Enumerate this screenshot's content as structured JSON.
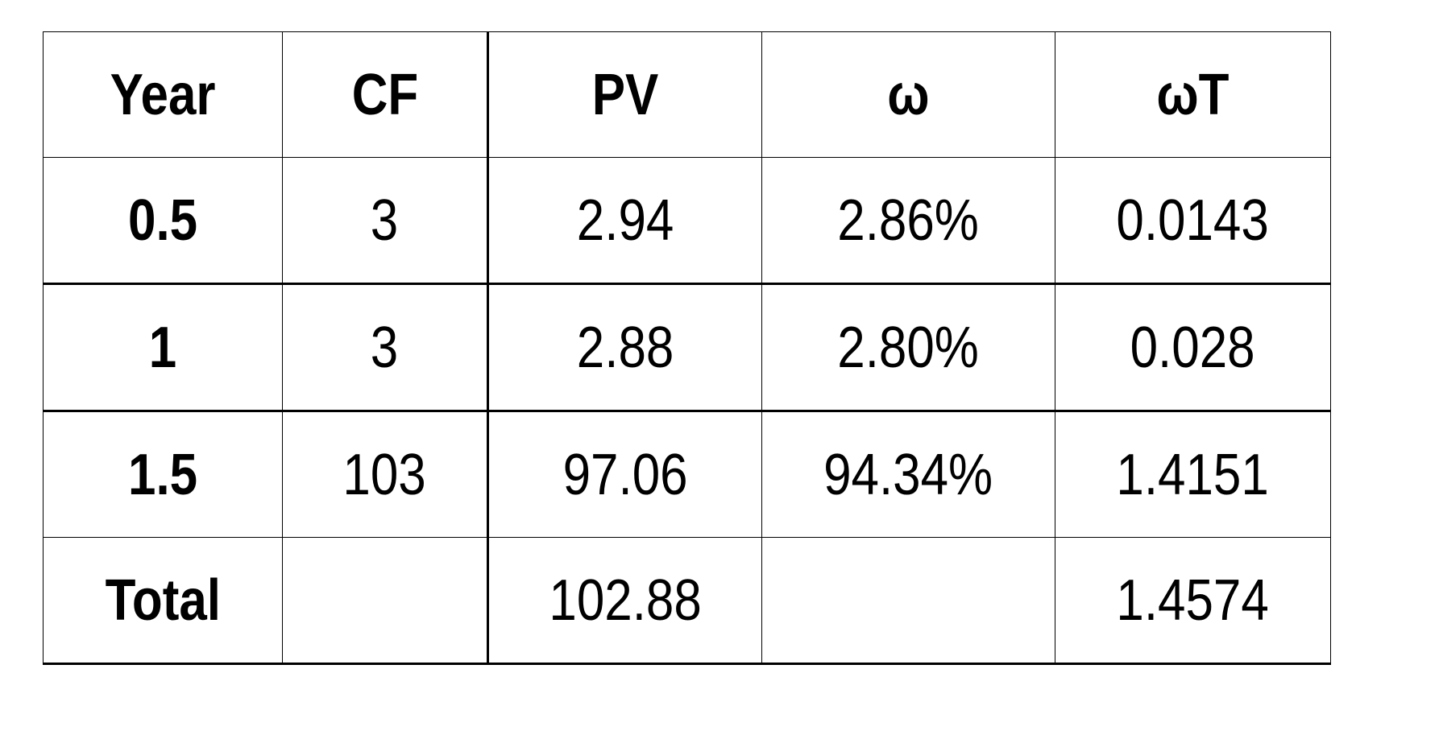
{
  "table": {
    "headers": [
      "Year",
      "CF",
      "PV",
      "ω",
      "ωT"
    ],
    "rows": [
      [
        "0.5",
        "3",
        "2.94",
        "2.86%",
        "0.0143"
      ],
      [
        "1",
        "3",
        "2.88",
        "2.80%",
        "0.028"
      ],
      [
        "1.5",
        "103",
        "97.06",
        "94.34%",
        "1.4151"
      ],
      [
        "Total",
        "",
        "102.88",
        "",
        "1.4574"
      ]
    ]
  }
}
